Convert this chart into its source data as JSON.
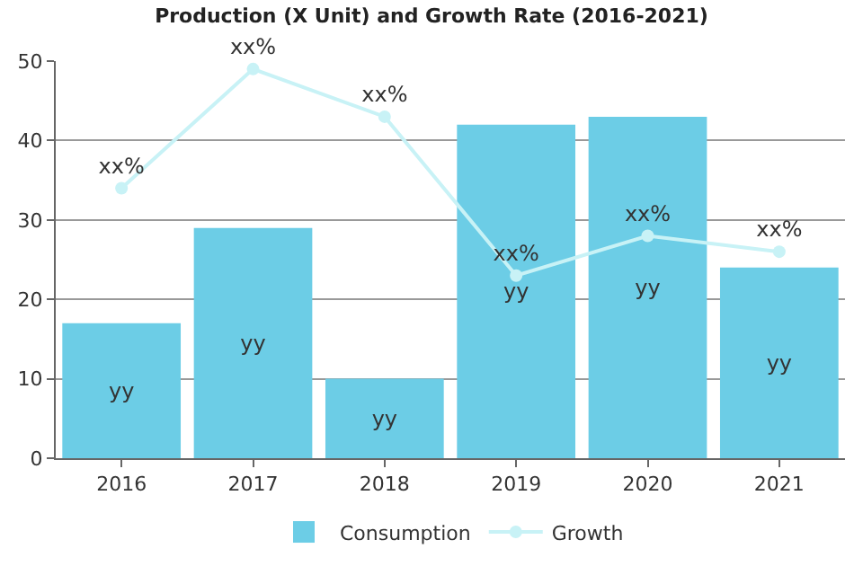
{
  "chart_data": {
    "type": "bar",
    "title": "Production (X Unit) and Growth Rate (2016-2021)",
    "categories": [
      "2016",
      "2017",
      "2018",
      "2019",
      "2020",
      "2021"
    ],
    "series": [
      {
        "name": "Consumption",
        "color": "#6ccde6",
        "values": [
          17,
          29,
          10,
          42,
          43,
          24
        ],
        "value_labels": [
          "yy",
          "yy",
          "yy",
          "yy",
          "yy",
          "yy"
        ]
      },
      {
        "name": "Growth",
        "type": "line",
        "color": "#c8f2f6",
        "values": [
          34,
          49,
          43,
          23,
          28,
          26
        ],
        "value_labels": [
          "xx%",
          "xx%",
          "xx%",
          "xx%",
          "xx%",
          "xx%"
        ]
      }
    ],
    "ylim": [
      0,
      50
    ],
    "yticks": [
      0,
      10,
      20,
      30,
      40,
      50
    ],
    "grid": "y",
    "legend": "bottom",
    "marker": "circle",
    "line_style": "solid"
  }
}
